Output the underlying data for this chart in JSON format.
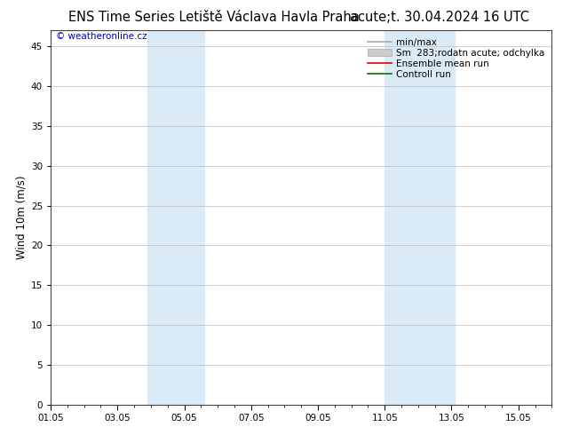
{
  "title_left": "ENS Time Series Letiště Václava Havla Praha",
  "title_right": "acute;t. 30.04.2024 16 UTC",
  "watermark": "© weatheronline.cz",
  "ylabel": "Wind 10m (m/s)",
  "ylim": [
    0,
    47
  ],
  "yticks": [
    0,
    5,
    10,
    15,
    20,
    25,
    30,
    35,
    40,
    45
  ],
  "xtick_labels": [
    "01.05",
    "03.05",
    "05.05",
    "07.05",
    "09.05",
    "11.05",
    "13.05",
    "15.05"
  ],
  "xtick_positions": [
    1,
    3,
    5,
    7,
    9,
    11,
    13,
    15
  ],
  "xlim": [
    1,
    16
  ],
  "shade_bands": [
    {
      "xmin": 3.9,
      "xmax": 5.6,
      "color": "#daeaf7"
    },
    {
      "xmin": 11.0,
      "xmax": 13.1,
      "color": "#daeaf7"
    }
  ],
  "bg_color": "#ffffff",
  "grid_color": "#bbbbbb",
  "title_fontsize": 10.5,
  "watermark_color": "#0000bb",
  "watermark_fontsize": 7.5,
  "tick_label_fontsize": 7.5,
  "ylabel_fontsize": 8.5,
  "legend_fontsize": 7.5
}
